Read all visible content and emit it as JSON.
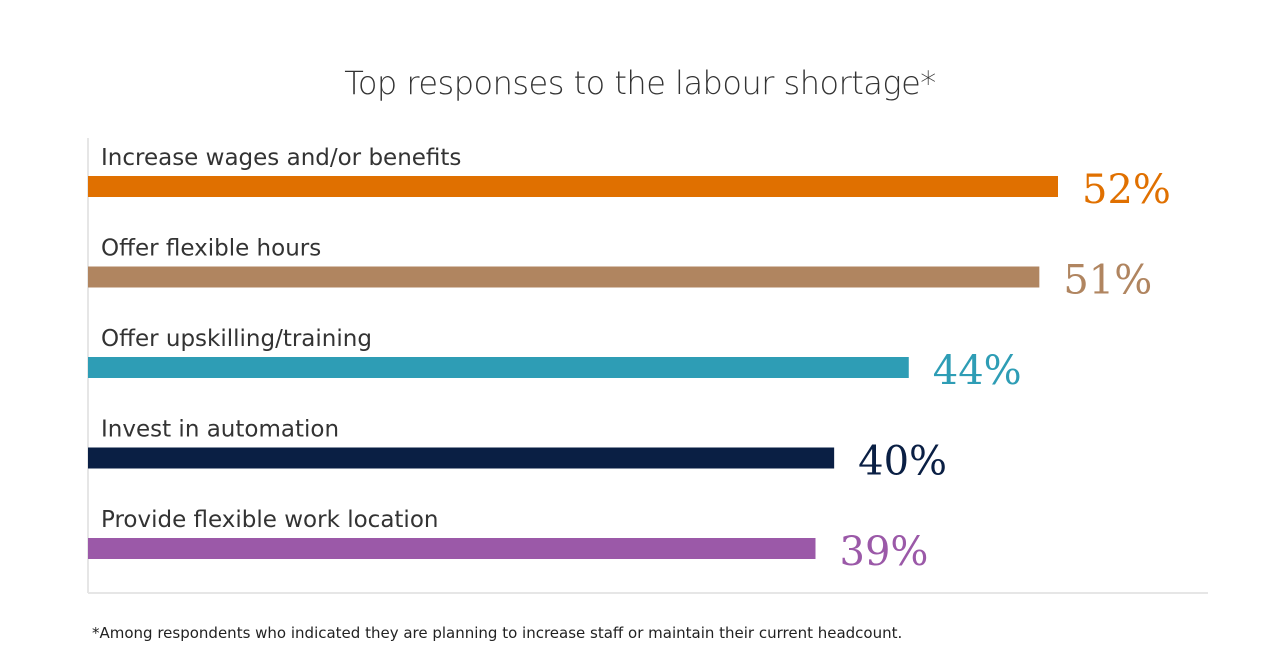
{
  "chart_data": {
    "type": "bar",
    "orientation": "horizontal",
    "title": "Top responses to the labour shortage*",
    "categories": [
      "Increase wages and/or benefits",
      "Offer flexible hours",
      "Offer upskilling/training",
      "Invest in automation",
      "Provide flexible work location"
    ],
    "values": [
      52,
      51,
      44,
      40,
      39
    ],
    "value_labels": [
      "52%",
      "51%",
      "44%",
      "40%",
      "39%"
    ],
    "colors": [
      "#e07000",
      "#b08560",
      "#2e9db5",
      "#0a1f44",
      "#9b59a8"
    ],
    "xlim": [
      0,
      60
    ],
    "unit": "%",
    "grid": false,
    "legend": "none"
  },
  "footnote": "*Among respondents who indicated they are planning to increase staff or maintain their current headcount."
}
